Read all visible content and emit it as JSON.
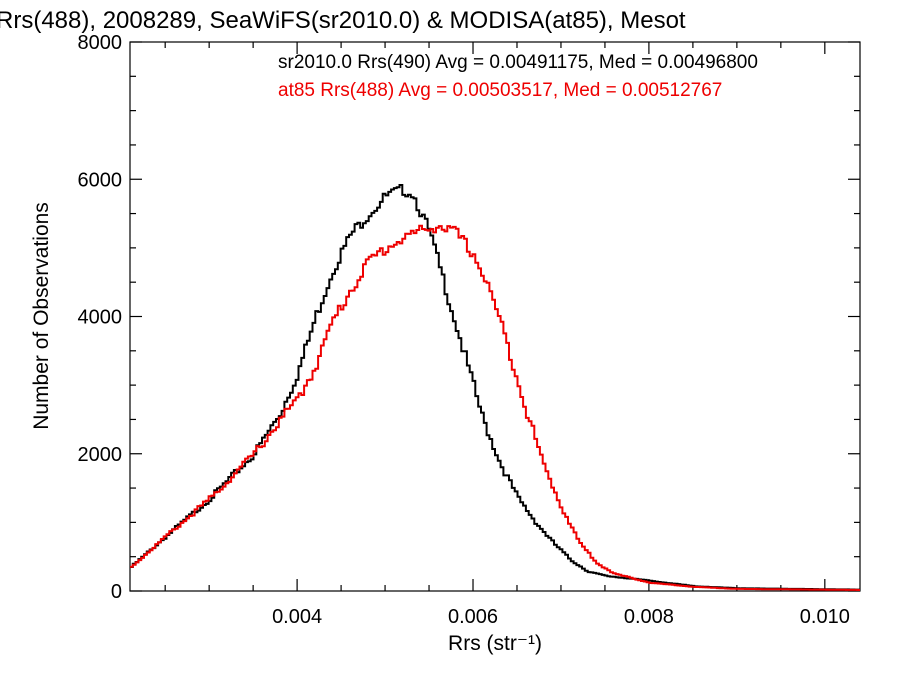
{
  "chart_data": {
    "type": "line",
    "title": "Rrs(488), 2008289, SeaWiFS(sr2010.0) & MODISA(at85), Mesot",
    "xlabel": "Rrs (str⁻¹)",
    "ylabel": "Number of Observations",
    "xlim": [
      0.0021,
      0.0104
    ],
    "ylim": [
      0,
      8000
    ],
    "x_ticks": [
      "0.004",
      "0.006",
      "0.008",
      "0.010"
    ],
    "y_ticks": [
      "0",
      "2000",
      "4000",
      "6000",
      "8000"
    ],
    "x_tick_values": [
      0.004,
      0.006,
      0.008,
      0.01
    ],
    "y_tick_values": [
      0,
      2000,
      4000,
      6000,
      8000
    ],
    "grid": false,
    "legend_position": "top-right",
    "series": [
      {
        "name": "sr2010.0 Rrs(490) Avg = 0.00491175, Med = 0.00496800",
        "color": "#000000",
        "x": [
          0.0021,
          0.0025,
          0.003,
          0.0035,
          0.0038,
          0.004,
          0.0042,
          0.0044,
          0.0046,
          0.0048,
          0.005,
          0.0052,
          0.0053,
          0.0055,
          0.0057,
          0.0059,
          0.0061,
          0.0063,
          0.0065,
          0.0067,
          0.0069,
          0.0071,
          0.0073,
          0.0075,
          0.008,
          0.0085,
          0.009,
          0.0104
        ],
        "y": [
          350,
          800,
          1350,
          2000,
          2600,
          3200,
          4000,
          4700,
          5200,
          5500,
          5750,
          5850,
          5800,
          5200,
          4300,
          3400,
          2500,
          1850,
          1350,
          1000,
          700,
          450,
          280,
          220,
          150,
          70,
          40,
          20
        ]
      },
      {
        "name": "at85 Rrs(488) Avg = 0.00503517, Med = 0.00512767",
        "color": "#ee0000",
        "x": [
          0.0021,
          0.0025,
          0.003,
          0.0035,
          0.0038,
          0.004,
          0.0042,
          0.0044,
          0.0046,
          0.0048,
          0.005,
          0.0052,
          0.0054,
          0.0056,
          0.0058,
          0.006,
          0.0062,
          0.0064,
          0.0066,
          0.0068,
          0.007,
          0.0072,
          0.0074,
          0.0076,
          0.008,
          0.0085,
          0.009,
          0.0104
        ],
        "y": [
          350,
          800,
          1350,
          2000,
          2500,
          2800,
          3300,
          3950,
          4400,
          4800,
          5000,
          5150,
          5250,
          5330,
          5200,
          4900,
          4300,
          3500,
          2600,
          1800,
          1200,
          700,
          400,
          250,
          120,
          60,
          30,
          15
        ]
      }
    ]
  }
}
